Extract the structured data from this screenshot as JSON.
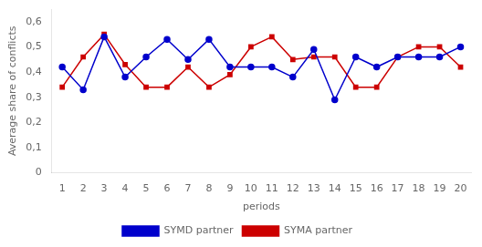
{
  "chart_data": {
    "type": "line",
    "x": [
      1,
      2,
      3,
      4,
      5,
      6,
      7,
      8,
      9,
      10,
      11,
      12,
      13,
      14,
      15,
      16,
      17,
      18,
      19,
      20
    ],
    "series": [
      {
        "name": "SYMD partner",
        "color": "#0000CC",
        "marker": "circle",
        "values": [
          0.42,
          0.33,
          0.54,
          0.38,
          0.46,
          0.53,
          0.45,
          0.53,
          0.42,
          0.42,
          0.42,
          0.38,
          0.49,
          0.29,
          0.46,
          0.42,
          0.46,
          0.46,
          0.46,
          0.5
        ]
      },
      {
        "name": "SYMA partner",
        "color": "#CC0000",
        "marker": "square",
        "values": [
          0.34,
          0.46,
          0.55,
          0.43,
          0.34,
          0.34,
          0.42,
          0.34,
          0.39,
          0.5,
          0.54,
          0.45,
          0.46,
          0.46,
          0.34,
          0.34,
          0.46,
          0.5,
          0.5,
          0.42
        ]
      }
    ],
    "xlabel": "periods",
    "ylabel": "Average share of conflicts",
    "xlim": [
      0.5,
      20.5
    ],
    "ylim": [
      0,
      0.65
    ],
    "xticks": [
      1,
      2,
      3,
      4,
      5,
      6,
      7,
      8,
      9,
      10,
      11,
      12,
      13,
      14,
      15,
      16,
      17,
      18,
      19,
      20
    ],
    "yticks": [
      0,
      {
        "value": 0.1,
        "label": "0,1"
      },
      {
        "value": 0.2,
        "label": "0,2"
      },
      {
        "value": 0.3,
        "label": "0,3"
      },
      {
        "value": 0.4,
        "label": "0,4"
      },
      {
        "value": 0.5,
        "label": "0,5"
      },
      {
        "value": 0.6,
        "label": "0,6"
      }
    ],
    "grid": false,
    "legend": "bottom"
  }
}
